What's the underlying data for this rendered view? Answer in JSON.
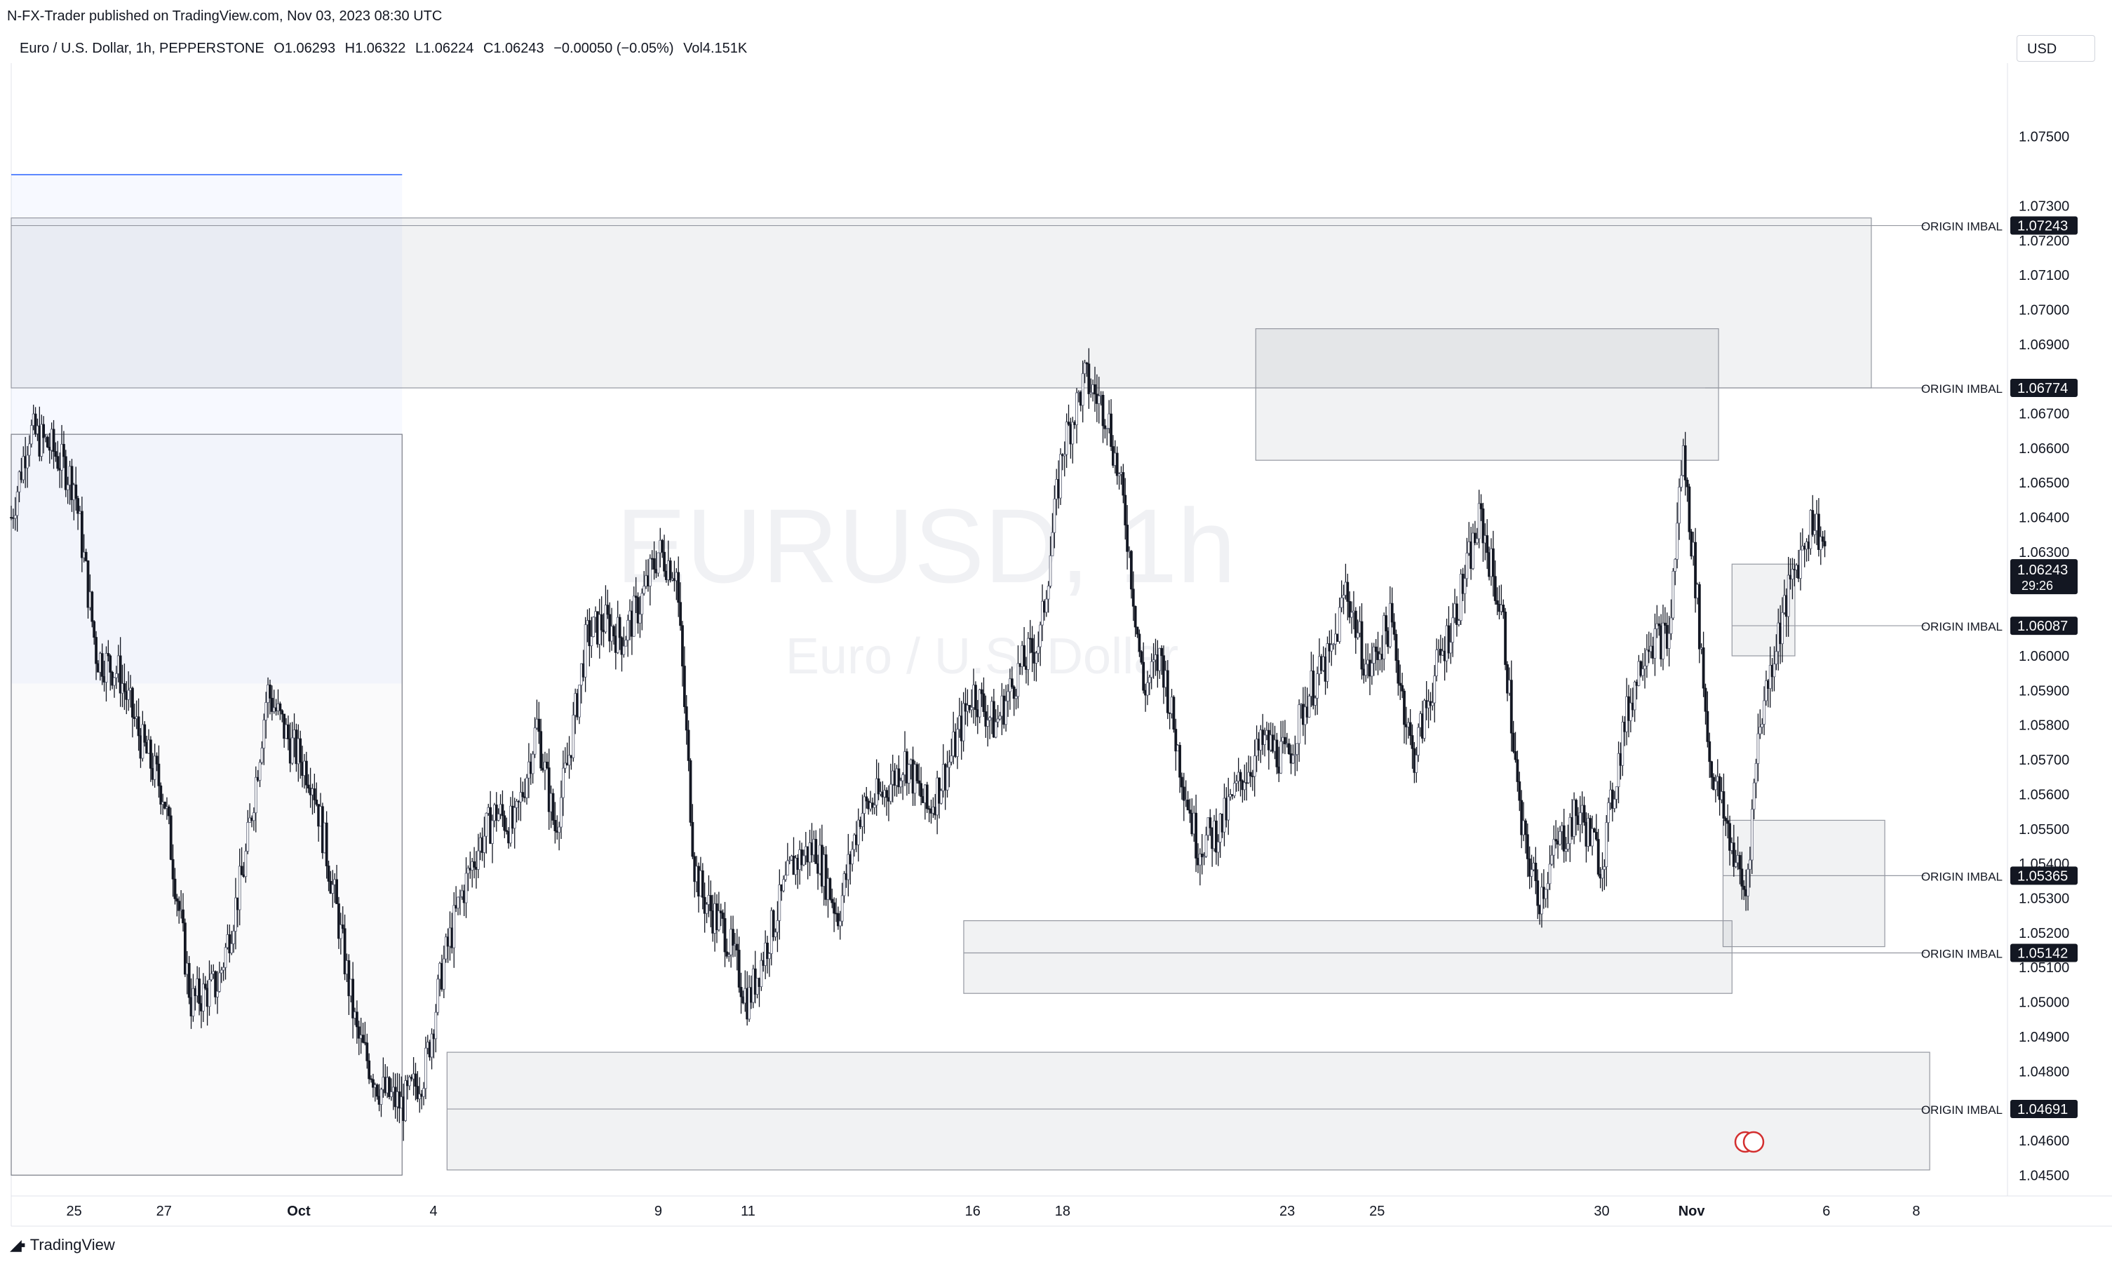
{
  "header": {
    "published": "N-FX-Trader published on TradingView.com, Nov 03, 2023 08:30 UTC"
  },
  "legend": {
    "symbol": "Euro / U.S. Dollar, 1h, PEPPERSTONE",
    "open": "O1.06293",
    "high": "H1.06322",
    "low": "L1.06224",
    "close": "C1.06243",
    "change": "−0.00050 (−0.05%)",
    "volume": "Vol4.151K"
  },
  "currency": "USD",
  "watermark": {
    "symbol": "EURUSD, 1h",
    "name": "Euro / U.S. Dollar"
  },
  "footer": {
    "brand": "TradingView"
  },
  "chart_data": {
    "type": "candlestick",
    "y_range": [
      1.0445,
      1.077
    ],
    "y_ticks": [
      "1.07500",
      "1.07300",
      "1.07200",
      "1.07100",
      "1.07000",
      "1.06900",
      "1.06700",
      "1.06600",
      "1.06500",
      "1.06400",
      "1.06300",
      "1.06000",
      "1.05900",
      "1.05800",
      "1.05700",
      "1.05600",
      "1.05500",
      "1.05400",
      "1.05300",
      "1.05200",
      "1.05100",
      "1.05000",
      "1.04900",
      "1.04800",
      "1.04600",
      "1.04500"
    ],
    "y_tick_values": [
      1.075,
      1.073,
      1.072,
      1.071,
      1.07,
      1.069,
      1.067,
      1.066,
      1.065,
      1.064,
      1.063,
      1.06,
      1.059,
      1.058,
      1.057,
      1.056,
      1.055,
      1.054,
      1.053,
      1.052,
      1.051,
      1.05,
      1.049,
      1.048,
      1.046,
      1.045
    ],
    "x_range": [
      23.6,
      41.5
    ],
    "x_ticks": [
      {
        "label": "25",
        "x": 25,
        "bold": false
      },
      {
        "label": "27",
        "x": 27,
        "bold": false
      },
      {
        "label": "Oct",
        "x": 30,
        "bold": true
      },
      {
        "label": "4",
        "x": 33,
        "bold": false
      },
      {
        "label": "9",
        "x": 38,
        "bold": false
      },
      {
        "label": "11",
        "x": 40,
        "bold": false
      },
      {
        "label": "16",
        "x": 45,
        "bold": false
      },
      {
        "label": "18",
        "x": 47,
        "bold": false
      },
      {
        "label": "23",
        "x": 52,
        "bold": false
      },
      {
        "label": "25",
        "x": 54,
        "bold": false
      },
      {
        "label": "30",
        "x": 59,
        "bold": false
      },
      {
        "label": "Nov",
        "x": 61,
        "bold": true
      },
      {
        "label": "6",
        "x": 64,
        "bold": false
      },
      {
        "label": "8",
        "x": 66,
        "bold": false
      }
    ],
    "price_path": [
      [
        23.6,
        1.064
      ],
      [
        24.0,
        1.0665
      ],
      [
        24.5,
        1.066
      ],
      [
        25.0,
        1.065
      ],
      [
        25.5,
        1.06
      ],
      [
        26.0,
        1.0595
      ],
      [
        26.5,
        1.0575
      ],
      [
        27.0,
        1.056
      ],
      [
        27.6,
        1.05
      ],
      [
        28.2,
        1.0505
      ],
      [
        28.8,
        1.054
      ],
      [
        29.3,
        1.059
      ],
      [
        29.8,
        1.0575
      ],
      [
        30.3,
        1.0565
      ],
      [
        30.8,
        1.053
      ],
      [
        31.3,
        1.049
      ],
      [
        31.8,
        1.0475
      ],
      [
        32.3,
        1.047
      ],
      [
        32.8,
        1.048
      ],
      [
        33.2,
        1.051
      ],
      [
        33.6,
        1.053
      ],
      [
        34.0,
        1.0545
      ],
      [
        34.4,
        1.0555
      ],
      [
        34.8,
        1.055
      ],
      [
        35.3,
        1.058
      ],
      [
        35.7,
        1.055
      ],
      [
        36.0,
        1.057
      ],
      [
        36.4,
        1.0605
      ],
      [
        36.8,
        1.061
      ],
      [
        37.2,
        1.0605
      ],
      [
        37.6,
        1.0615
      ],
      [
        38.0,
        1.063
      ],
      [
        38.4,
        1.0625
      ],
      [
        38.8,
        1.054
      ],
      [
        39.0,
        1.053
      ],
      [
        39.5,
        1.052
      ],
      [
        40.0,
        1.05
      ],
      [
        40.5,
        1.052
      ],
      [
        41.0,
        1.054
      ],
      [
        41.5,
        1.0545
      ],
      [
        42.0,
        1.0525
      ],
      [
        42.5,
        1.0555
      ],
      [
        43.0,
        1.056
      ],
      [
        43.5,
        1.057
      ],
      [
        44.0,
        1.0555
      ],
      [
        44.5,
        1.057
      ],
      [
        45.0,
        1.059
      ],
      [
        45.5,
        1.058
      ],
      [
        46.0,
        1.0595
      ],
      [
        46.5,
        1.0605
      ],
      [
        47.0,
        1.066
      ],
      [
        47.5,
        1.068
      ],
      [
        48.0,
        1.067
      ],
      [
        48.4,
        1.064
      ],
      [
        48.8,
        1.059
      ],
      [
        49.2,
        1.06
      ],
      [
        49.6,
        1.057
      ],
      [
        50.0,
        1.0545
      ],
      [
        50.5,
        1.055
      ],
      [
        51.0,
        1.0565
      ],
      [
        51.5,
        1.0575
      ],
      [
        52.0,
        1.057
      ],
      [
        52.5,
        1.059
      ],
      [
        53.0,
        1.06
      ],
      [
        53.3,
        1.062
      ],
      [
        53.8,
        1.0595
      ],
      [
        54.3,
        1.061
      ],
      [
        54.8,
        1.057
      ],
      [
        55.3,
        1.0595
      ],
      [
        55.8,
        1.0615
      ],
      [
        56.3,
        1.064
      ],
      [
        56.8,
        1.061
      ],
      [
        57.2,
        1.055
      ],
      [
        57.6,
        1.053
      ],
      [
        58.0,
        1.0545
      ],
      [
        58.5,
        1.0555
      ],
      [
        59.0,
        1.054
      ],
      [
        59.5,
        1.058
      ],
      [
        60.0,
        1.0605
      ],
      [
        60.5,
        1.0605
      ],
      [
        60.8,
        1.066
      ],
      [
        61.1,
        1.062
      ],
      [
        61.4,
        1.057
      ],
      [
        61.8,
        1.055
      ],
      [
        62.2,
        1.053
      ],
      [
        62.5,
        1.058
      ],
      [
        62.9,
        1.0605
      ],
      [
        63.3,
        1.0625
      ],
      [
        63.7,
        1.064
      ],
      [
        64.0,
        1.063
      ]
    ],
    "zones": [
      {
        "x1": 23.6,
        "x2": 32.3,
        "y1": 1.0739,
        "y2": 1.0592,
        "shade": "light-blue"
      },
      {
        "x1": 23.6,
        "x2": 65.0,
        "y1": 1.07265,
        "y2": 1.06774,
        "label": "ORIGIN IMBAL",
        "value": "1.07243"
      },
      {
        "x1": 23.6,
        "x2": 32.3,
        "y1": 1.0664,
        "y2": 1.045,
        "shade": "faint"
      },
      {
        "x1": 51.3,
        "x2": 61.6,
        "y1": 1.06945,
        "y2": 1.06565
      },
      {
        "x1": 61.3,
        "x2": 65.0,
        "y1": 1.06774,
        "y2": 1.06774,
        "label": "ORIGIN IMBAL",
        "value": "1.06774",
        "line_only": true
      },
      {
        "x1": 61.9,
        "x2": 63.3,
        "y1": 1.06265,
        "y2": 1.06,
        "label": "ORIGIN IMBAL",
        "value": "1.06087"
      },
      {
        "x1": 61.7,
        "x2": 65.3,
        "y1": 1.05525,
        "y2": 1.0516,
        "label": "ORIGIN IMBAL",
        "value": "1.05365"
      },
      {
        "x1": 44.8,
        "x2": 61.9,
        "y1": 1.05235,
        "y2": 1.05025,
        "label": "ORIGIN IMBAL",
        "value": "1.05142"
      },
      {
        "x1": 33.3,
        "x2": 66.3,
        "y1": 1.04855,
        "y2": 1.04515,
        "label": "ORIGIN IMBAL",
        "value": "1.04691"
      }
    ],
    "current_price": {
      "value": "1.06243",
      "countdown": "29:26"
    }
  }
}
